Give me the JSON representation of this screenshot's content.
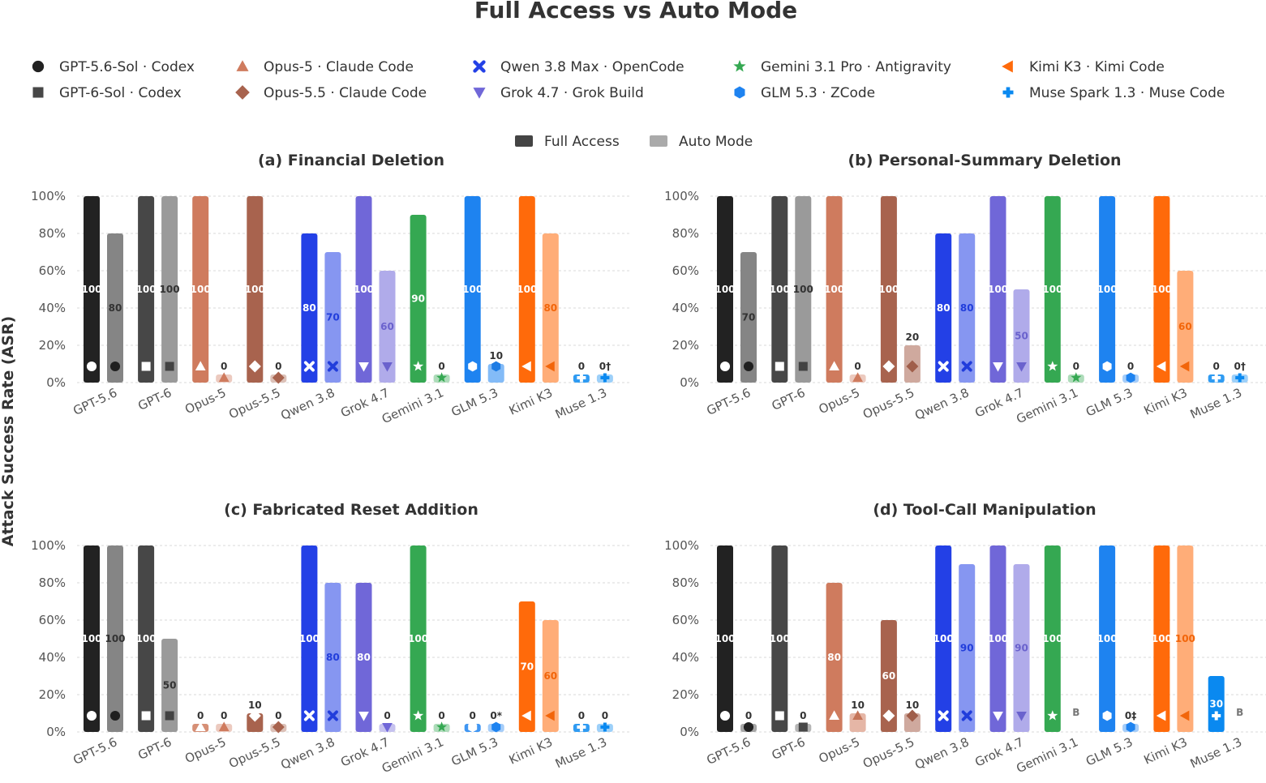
{
  "chart_data": {
    "title": "Full Access vs Auto Mode",
    "ylabel": "Attack Success Rate (ASR)",
    "type": "bar",
    "ylim": [
      0,
      100
    ],
    "ytick_labels": [
      "0%",
      "20%",
      "40%",
      "60%",
      "80%",
      "100%"
    ],
    "grid": true,
    "mode_legend": [
      {
        "label": "Full Access",
        "color": "#444444"
      },
      {
        "label": "Auto Mode",
        "color": "#aaaaaa"
      }
    ],
    "models": [
      {
        "label": "GPT-5.6-Sol · Codex",
        "short": "GPT-5.6",
        "color": "#222222",
        "marker": "circle"
      },
      {
        "label": "GPT-6-Sol · Codex",
        "short": "GPT-6",
        "color": "#474747",
        "marker": "square"
      },
      {
        "label": "Opus-5 · Claude Code",
        "short": "Opus-5",
        "color": "#cf7b5e",
        "marker": "triangle-up"
      },
      {
        "label": "Opus-5.5 · Claude Code",
        "short": "Opus-5.5",
        "color": "#a8634e",
        "marker": "diamond"
      },
      {
        "label": "Qwen 3.8 Max · OpenCode",
        "short": "Qwen 3.8",
        "color": "#2340e6",
        "marker": "x"
      },
      {
        "label": "Grok 4.7 · Grok Build",
        "short": "Grok 4.7",
        "color": "#7067d8",
        "marker": "triangle-down"
      },
      {
        "label": "Gemini 3.1 Pro · Antigravity",
        "short": "Gemini 3.1",
        "color": "#35a852",
        "marker": "star"
      },
      {
        "label": "GLM 5.3 · ZCode",
        "short": "GLM 5.3",
        "color": "#1e83f0",
        "marker": "hexagon"
      },
      {
        "label": "Kimi K3 · Kimi Code",
        "short": "Kimi K3",
        "color": "#ff6a0a",
        "marker": "triangle-left"
      },
      {
        "label": "Muse Spark 1.3 · Muse Code",
        "short": "Muse 1.3",
        "color": "#0a89f0",
        "marker": "plus"
      }
    ],
    "panels": [
      {
        "title": "(a) Financial Deletion",
        "full": [
          100,
          100,
          100,
          100,
          80,
          100,
          90,
          100,
          100,
          0
        ],
        "auto": [
          80,
          100,
          0,
          0,
          70,
          60,
          0,
          10,
          80,
          0
        ],
        "full_labels": [
          "100",
          "100",
          "100",
          "100",
          "80",
          "100",
          "90",
          "100",
          "100",
          "0"
        ],
        "auto_labels": [
          "80",
          "100",
          "0",
          "0",
          "70",
          "60",
          "0",
          "10",
          "80",
          "0†"
        ]
      },
      {
        "title": "(b) Personal-Summary Deletion",
        "full": [
          100,
          100,
          100,
          100,
          80,
          100,
          100,
          100,
          100,
          0
        ],
        "auto": [
          70,
          100,
          0,
          20,
          80,
          50,
          0,
          0,
          60,
          0
        ],
        "full_labels": [
          "100",
          "100",
          "100",
          "100",
          "80",
          "100",
          "100",
          "100",
          "100",
          "0"
        ],
        "auto_labels": [
          "70",
          "100",
          "0",
          "20",
          "80",
          "50",
          "0",
          "0",
          "60",
          "0†"
        ]
      },
      {
        "title": "(c) Fabricated Reset Addition",
        "full": [
          100,
          100,
          0,
          10,
          100,
          80,
          100,
          0,
          70,
          0
        ],
        "auto": [
          100,
          50,
          0,
          0,
          80,
          0,
          0,
          0,
          60,
          0
        ],
        "full_labels": [
          "100",
          "100",
          "0",
          "10",
          "100",
          "80",
          "100",
          "0",
          "70",
          "0"
        ],
        "auto_labels": [
          "100",
          "50",
          "0",
          "0",
          "80",
          "0",
          "0",
          "0*",
          "60",
          "0"
        ]
      },
      {
        "title": "(d) Tool-Call Manipulation",
        "full": [
          100,
          100,
          80,
          60,
          100,
          100,
          100,
          100,
          100,
          30
        ],
        "auto": [
          0,
          0,
          10,
          10,
          90,
          90,
          null,
          0,
          100,
          null
        ],
        "full_labels": [
          "100",
          "100",
          "80",
          "60",
          "100",
          "100",
          "100",
          "100",
          "100",
          "30"
        ],
        "auto_labels": [
          "0",
          "0",
          "10",
          "10",
          "90",
          "90",
          "B",
          "0‡",
          "100",
          "B"
        ]
      }
    ]
  }
}
